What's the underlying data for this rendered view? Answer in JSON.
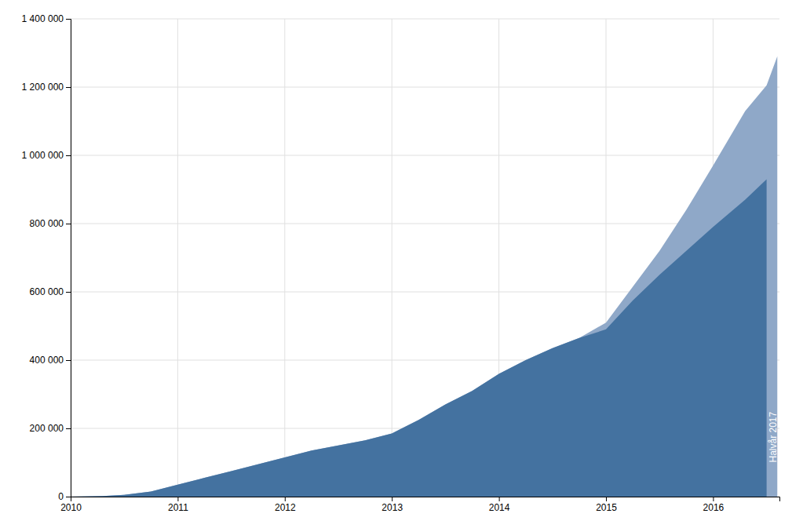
{
  "chart_data": {
    "type": "area",
    "series": [
      {
        "color": "#8fa8c8",
        "x": [
          2010.0,
          2010.3,
          2010.5,
          2010.75,
          2011.0,
          2011.25,
          2011.5,
          2011.75,
          2012.0,
          2012.25,
          2012.5,
          2012.75,
          2013.0,
          2013.25,
          2013.5,
          2013.75,
          2014.0,
          2014.25,
          2014.5,
          2014.75,
          2015.0,
          2015.25,
          2015.5,
          2015.75,
          2016.0,
          2016.3,
          2016.5,
          2016.6
        ],
        "values": [
          0,
          2000,
          5000,
          15000,
          35000,
          55000,
          75000,
          95000,
          115000,
          135000,
          150000,
          165000,
          185000,
          225000,
          270000,
          310000,
          360000,
          400000,
          435000,
          465000,
          510000,
          615000,
          720000,
          840000,
          970000,
          1130000,
          1205000,
          1290000
        ]
      },
      {
        "color": "#4472a0",
        "x": [
          2010.0,
          2010.3,
          2010.5,
          2010.75,
          2011.0,
          2011.25,
          2011.5,
          2011.75,
          2012.0,
          2012.25,
          2012.5,
          2012.75,
          2013.0,
          2013.25,
          2013.5,
          2013.75,
          2014.0,
          2014.25,
          2014.5,
          2014.75,
          2015.0,
          2015.25,
          2015.5,
          2015.75,
          2016.0,
          2016.3,
          2016.5
        ],
        "values": [
          0,
          2000,
          5000,
          15000,
          35000,
          55000,
          75000,
          95000,
          115000,
          135000,
          150000,
          165000,
          185000,
          225000,
          270000,
          310000,
          360000,
          400000,
          435000,
          465000,
          490000,
          575000,
          650000,
          720000,
          790000,
          870000,
          930000
        ]
      }
    ],
    "xlim": [
      2010.0,
      2016.62
    ],
    "xticks": [
      2010,
      2011,
      2012,
      2013,
      2014,
      2015,
      2016
    ],
    "ylim": [
      0,
      1400000
    ],
    "yticks": [
      0,
      {
        "value": 200000,
        "label": "200 000"
      },
      {
        "value": 400000,
        "label": "400 000"
      },
      {
        "value": 600000,
        "label": "600 000"
      },
      {
        "value": 800000,
        "label": "800 000"
      },
      {
        "value": 1000000,
        "label": "1 000 000"
      },
      {
        "value": 1200000,
        "label": "1 200 000"
      },
      {
        "value": 1400000,
        "label": "1 400 000"
      }
    ],
    "grid": true,
    "annotations": [
      {
        "text": "Halvår 2017",
        "x": 2016.56,
        "y": 100000,
        "color": "#ffffff"
      }
    ]
  }
}
